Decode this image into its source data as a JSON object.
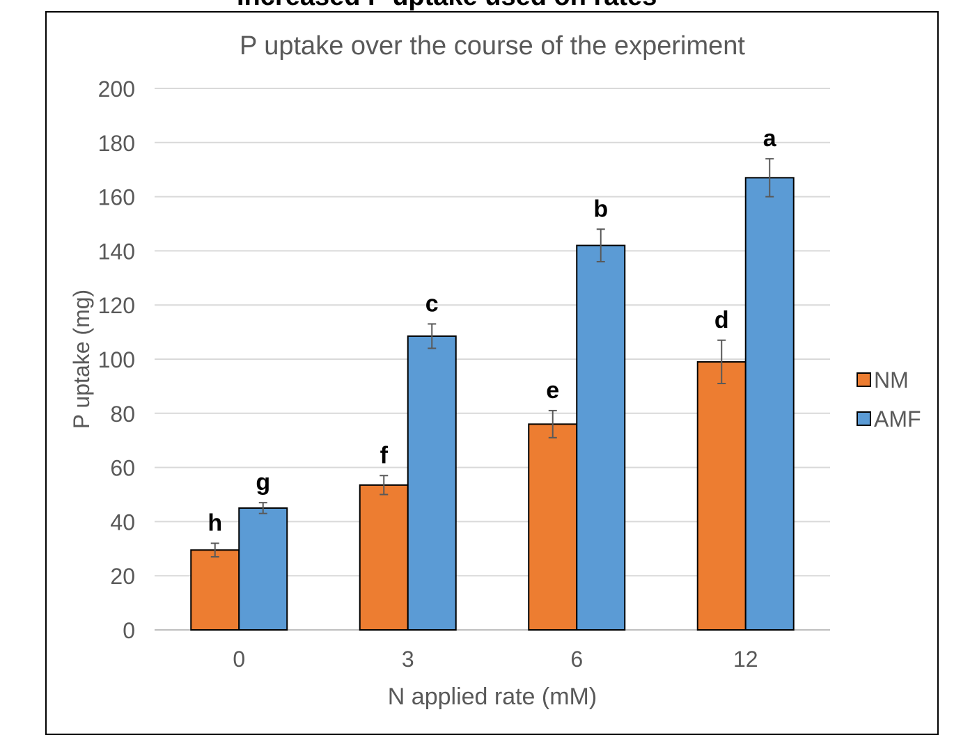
{
  "top_cropped_text": "Increased P uptake used on rates",
  "chart_data": {
    "type": "bar",
    "title": "P uptake over the course of the experiment",
    "xlabel": "N applied rate (mM)",
    "ylabel": "P uptake (mg)",
    "categories": [
      "0",
      "3",
      "6",
      "12"
    ],
    "ylim": [
      0,
      200
    ],
    "yticks": [
      "0",
      "20",
      "40",
      "60",
      "80",
      "100",
      "120",
      "140",
      "160",
      "180",
      "200"
    ],
    "grid": true,
    "legend_position": "right",
    "series": [
      {
        "name": "NM",
        "color": "#ED7D31",
        "values": [
          29.5,
          53.5,
          76,
          99
        ],
        "errors": [
          2.5,
          3.5,
          5,
          8
        ],
        "letters": [
          "h",
          "f",
          "e",
          "d"
        ]
      },
      {
        "name": "AMF",
        "color": "#5B9BD5",
        "values": [
          45,
          108.5,
          142,
          167
        ],
        "errors": [
          2,
          4.5,
          6,
          7
        ],
        "letters": [
          "g",
          "c",
          "b",
          "a"
        ]
      }
    ]
  }
}
